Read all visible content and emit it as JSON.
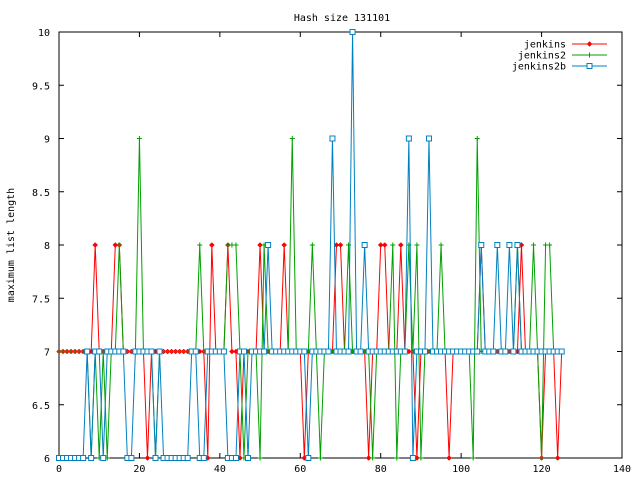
{
  "chart_data": {
    "type": "line",
    "title": "Hash size 131101",
    "xlabel": "",
    "ylabel": "maximum list length",
    "xlim": [
      0,
      140
    ],
    "ylim": [
      6,
      10
    ],
    "xticks": [
      0,
      20,
      40,
      60,
      80,
      100,
      120,
      140
    ],
    "yticks": [
      6,
      6.5,
      7,
      7.5,
      8,
      8.5,
      9,
      9.5,
      10
    ],
    "ytick_labels": [
      "6",
      "6.5",
      "7",
      "7.5",
      "8",
      "8.5",
      "9",
      "9.5",
      "10"
    ],
    "grid": false,
    "legend_position": "top-right",
    "series": [
      {
        "name": "jenkins",
        "color": "#ff0000",
        "marker": "diamond",
        "x": [
          0,
          1,
          2,
          3,
          4,
          5,
          6,
          7,
          8,
          9,
          10,
          11,
          12,
          13,
          14,
          15,
          16,
          17,
          18,
          19,
          20,
          21,
          22,
          23,
          24,
          25,
          26,
          27,
          28,
          29,
          30,
          31,
          32,
          33,
          34,
          35,
          36,
          37,
          38,
          39,
          40,
          41,
          42,
          43,
          44,
          45,
          46,
          47,
          48,
          49,
          50,
          51,
          52,
          53,
          54,
          55,
          56,
          57,
          58,
          59,
          60,
          61,
          62,
          63,
          64,
          65,
          66,
          67,
          68,
          69,
          70,
          71,
          72,
          73,
          74,
          75,
          76,
          77,
          78,
          79,
          80,
          81,
          82,
          83,
          84,
          85,
          86,
          87,
          88,
          89,
          90,
          91,
          92,
          93,
          94,
          95,
          96,
          97,
          98,
          99,
          100,
          101,
          102,
          103,
          104,
          105,
          106,
          107,
          108,
          109,
          110,
          111,
          112,
          113,
          114,
          115,
          116,
          117,
          118,
          119,
          120,
          121,
          122,
          123,
          124,
          125
        ],
        "y": [
          7,
          7,
          7,
          7,
          7,
          7,
          7,
          7,
          7,
          8,
          7,
          7,
          7,
          7,
          8,
          8,
          7,
          7,
          7,
          7,
          7,
          7,
          6,
          7,
          7,
          7,
          7,
          7,
          7,
          7,
          7,
          7,
          7,
          7,
          7,
          7,
          7,
          6,
          8,
          7,
          7,
          7,
          8,
          7,
          7,
          6,
          7,
          7,
          7,
          7,
          8,
          7,
          7,
          7,
          7,
          7,
          8,
          7,
          7,
          7,
          7,
          6,
          7,
          7,
          7,
          7,
          7,
          7,
          7,
          8,
          8,
          7,
          7,
          7,
          7,
          7,
          7,
          6,
          7,
          7,
          8,
          8,
          7,
          7,
          7,
          8,
          7,
          7,
          7,
          6,
          7,
          7,
          7,
          7,
          7,
          7,
          7,
          6,
          7,
          7,
          7,
          7,
          7,
          7,
          7,
          8,
          7,
          7,
          7,
          7,
          7,
          7,
          7,
          7,
          7,
          8,
          7,
          7,
          7,
          7,
          6,
          7,
          7,
          7,
          6,
          7
        ]
      },
      {
        "name": "jenkins2",
        "color": "#00a000",
        "marker": "plus",
        "x": [
          0,
          1,
          2,
          3,
          4,
          5,
          6,
          7,
          8,
          9,
          10,
          11,
          12,
          13,
          14,
          15,
          16,
          17,
          18,
          19,
          20,
          21,
          22,
          23,
          24,
          25,
          26,
          27,
          28,
          29,
          30,
          31,
          32,
          33,
          34,
          35,
          36,
          37,
          38,
          39,
          40,
          41,
          42,
          43,
          44,
          45,
          46,
          47,
          48,
          49,
          50,
          51,
          52,
          53,
          54,
          55,
          56,
          57,
          58,
          59,
          60,
          61,
          62,
          63,
          64,
          65,
          66,
          67,
          68,
          69,
          70,
          71,
          72,
          73,
          74,
          75,
          76,
          77,
          78,
          79,
          80,
          81,
          82,
          83,
          84,
          85,
          86,
          87,
          88,
          89,
          90,
          91,
          92,
          93,
          94,
          95,
          96,
          97,
          98,
          99,
          100,
          101,
          102,
          103,
          104,
          105,
          106,
          107,
          108,
          109,
          110,
          111,
          112,
          113,
          114,
          115,
          116,
          117,
          118,
          119,
          120,
          121,
          122,
          123,
          124,
          125
        ],
        "y": [
          7,
          7,
          7,
          7,
          7,
          7,
          7,
          7,
          6,
          7,
          6,
          7,
          6,
          7,
          7,
          8,
          7,
          7,
          7,
          7,
          9,
          7,
          7,
          7,
          6,
          7,
          7,
          7,
          7,
          7,
          7,
          7,
          7,
          7,
          7,
          8,
          7,
          7,
          7,
          7,
          7,
          7,
          8,
          8,
          8,
          7,
          6,
          7,
          7,
          7,
          6,
          8,
          7,
          7,
          7,
          7,
          7,
          7,
          9,
          7,
          7,
          7,
          7,
          8,
          7,
          6,
          7,
          7,
          7,
          7,
          7,
          7,
          8,
          7,
          7,
          7,
          7,
          7,
          6,
          7,
          7,
          7,
          7,
          8,
          6,
          7,
          7,
          8,
          7,
          8,
          6,
          7,
          7,
          7,
          7,
          8,
          7,
          7,
          7,
          7,
          7,
          7,
          7,
          6,
          9,
          7,
          7,
          7,
          7,
          7,
          7,
          7,
          7,
          7,
          8,
          7,
          7,
          7,
          8,
          7,
          6,
          8,
          8,
          7,
          7,
          7
        ]
      },
      {
        "name": "jenkins2b",
        "color": "#0080c0",
        "marker": "square",
        "x": [
          0,
          1,
          2,
          3,
          4,
          5,
          6,
          7,
          8,
          9,
          10,
          11,
          12,
          13,
          14,
          15,
          16,
          17,
          18,
          19,
          20,
          21,
          22,
          23,
          24,
          25,
          26,
          27,
          28,
          29,
          30,
          31,
          32,
          33,
          34,
          35,
          36,
          37,
          38,
          39,
          40,
          41,
          42,
          43,
          44,
          45,
          46,
          47,
          48,
          49,
          50,
          51,
          52,
          53,
          54,
          55,
          56,
          57,
          58,
          59,
          60,
          61,
          62,
          63,
          64,
          65,
          66,
          67,
          68,
          69,
          70,
          71,
          72,
          73,
          74,
          75,
          76,
          77,
          78,
          79,
          80,
          81,
          82,
          83,
          84,
          85,
          86,
          87,
          88,
          89,
          90,
          91,
          92,
          93,
          94,
          95,
          96,
          97,
          98,
          99,
          100,
          101,
          102,
          103,
          104,
          105,
          106,
          107,
          108,
          109,
          110,
          111,
          112,
          113,
          114,
          115,
          116,
          117,
          118,
          119,
          120,
          121,
          122,
          123,
          124,
          125
        ],
        "y": [
          6,
          6,
          6,
          6,
          6,
          6,
          6,
          7,
          6,
          7,
          7,
          6,
          7,
          7,
          7,
          7,
          7,
          6,
          6,
          7,
          7,
          7,
          7,
          7,
          6,
          7,
          6,
          6,
          6,
          6,
          6,
          6,
          6,
          7,
          7,
          6,
          6,
          7,
          7,
          7,
          7,
          7,
          6,
          6,
          6,
          7,
          7,
          6,
          7,
          7,
          7,
          7,
          8,
          7,
          7,
          7,
          7,
          7,
          7,
          7,
          7,
          7,
          6,
          7,
          7,
          7,
          7,
          7,
          9,
          7,
          7,
          7,
          7,
          10,
          7,
          7,
          8,
          7,
          7,
          7,
          7,
          7,
          7,
          7,
          7,
          7,
          7,
          9,
          6,
          7,
          7,
          7,
          9,
          7,
          7,
          7,
          7,
          7,
          7,
          7,
          7,
          7,
          7,
          7,
          7,
          8,
          7,
          7,
          7,
          8,
          7,
          7,
          8,
          7,
          8,
          7,
          7,
          7,
          7,
          7,
          7,
          7,
          7,
          7,
          7,
          7
        ]
      }
    ]
  }
}
